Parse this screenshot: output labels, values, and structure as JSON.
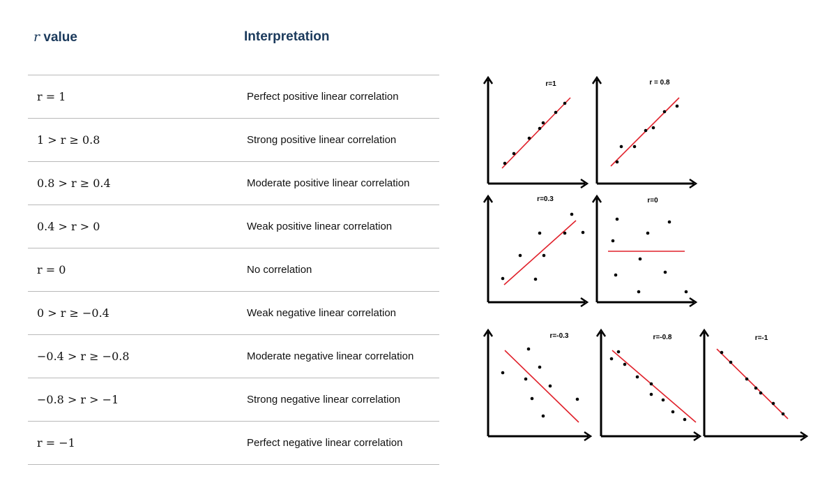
{
  "header": {
    "r_symbol": "r",
    "r_word": "value",
    "interpretation": "Interpretation"
  },
  "rows": [
    {
      "range": "r = 1",
      "interpretation": "Perfect positive linear correlation"
    },
    {
      "range": "1 > r ≥ 0.8",
      "interpretation": "Strong positive linear correlation"
    },
    {
      "range": "0.8 > r ≥ 0.4",
      "interpretation": "Moderate positive linear correlation"
    },
    {
      "range": "0.4 > r > 0",
      "interpretation": "Weak positive linear correlation"
    },
    {
      "range": "r = 0",
      "interpretation": "No correlation"
    },
    {
      "range": "0 > r ≥ −0.4",
      "interpretation": "Weak negative linear correlation"
    },
    {
      "range": "−0.4 > r ≥ −0.8",
      "interpretation": "Moderate negative linear correlation"
    },
    {
      "range": "−0.8 > r > −1",
      "interpretation": "Strong negative linear correlation"
    },
    {
      "range": "r = −1",
      "interpretation": "Perfect negative linear correlation"
    }
  ],
  "colors": {
    "header_text": "#1b3a5c",
    "fit_line": "#e0202a",
    "points": "#000000",
    "rule": "#b9b9b9"
  },
  "plots": [
    {
      "label": "r=1"
    },
    {
      "label": "r = 0.8"
    },
    {
      "label": "r=0.3"
    },
    {
      "label": "r=0"
    },
    {
      "label": "r=-0.3"
    },
    {
      "label": "r=-0.8"
    },
    {
      "label": "r=-1"
    }
  ]
}
